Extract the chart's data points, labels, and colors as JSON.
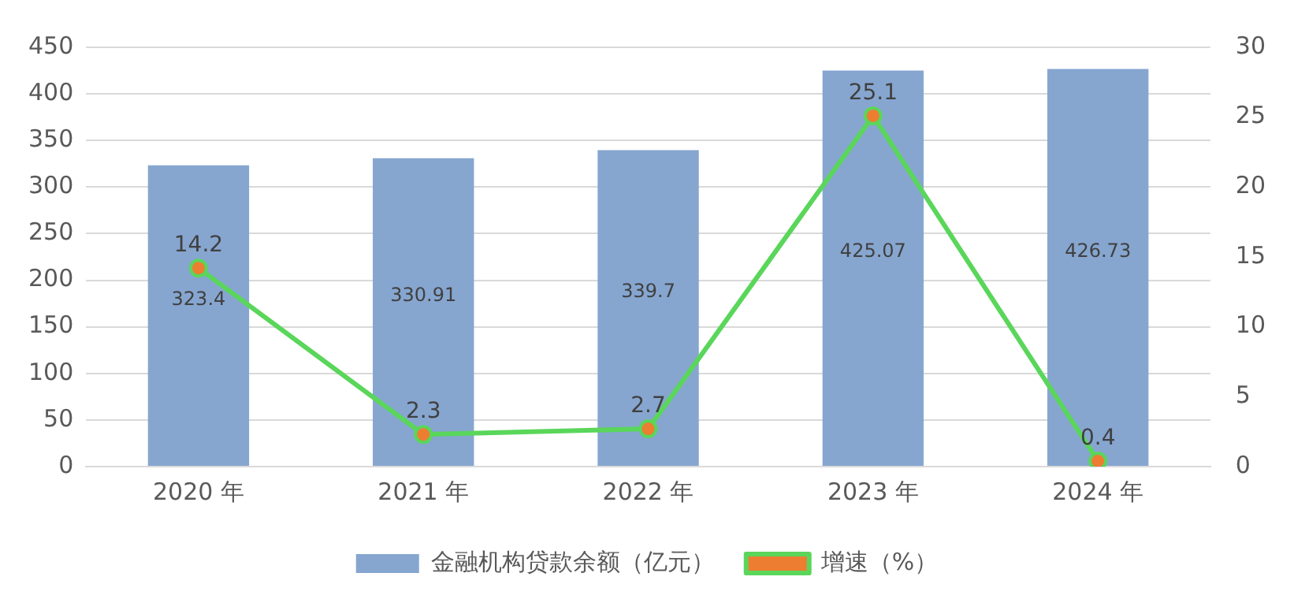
{
  "chart_data": {
    "type": "bar",
    "categories": [
      "2020 年",
      "2021 年",
      "2022 年",
      "2023 年",
      "2024 年"
    ],
    "series": [
      {
        "name": "金融机构贷款余额（亿元）",
        "color": "#86a6d0",
        "values": [
          323.4,
          330.91,
          339.7,
          425.07,
          426.73
        ]
      },
      {
        "name": "增速（%）",
        "type": "line",
        "axis": "y2",
        "color": "#5ad65a",
        "values": [
          14.2,
          2.3,
          2.7,
          25.1,
          0.4
        ]
      }
    ],
    "ylim": [
      0,
      450
    ],
    "yticks": [
      0,
      50,
      100,
      150,
      200,
      250,
      300,
      350,
      400,
      450
    ],
    "y2lim": [
      0,
      30
    ],
    "y2ticks": [
      0,
      5,
      10,
      15,
      20,
      25,
      30
    ],
    "grid": "y",
    "legend": "bottom",
    "marker": "circle",
    "line_style": "solid",
    "data_labels": true
  }
}
